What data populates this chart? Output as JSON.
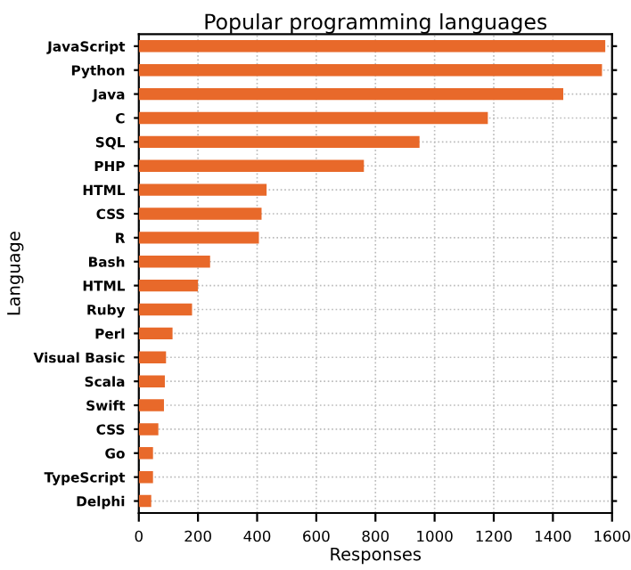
{
  "chart_data": {
    "type": "bar",
    "orientation": "horizontal",
    "title": "Popular programming languages",
    "xlabel": "Responses",
    "ylabel": "Language",
    "categories": [
      "JavaScript",
      "Python",
      "Java",
      "C",
      "SQL",
      "PHP",
      "HTML",
      "CSS",
      "R",
      "Bash",
      "HTML",
      "Ruby",
      "Perl",
      "Visual Basic",
      "Scala",
      "Swift",
      "CSS",
      "Go",
      "TypeScript",
      "Delphi"
    ],
    "values": [
      1577,
      1566,
      1435,
      1180,
      949,
      761,
      432,
      415,
      406,
      241,
      200,
      180,
      114,
      92,
      88,
      85,
      66,
      48,
      48,
      42
    ],
    "color": "#e8692a",
    "xlim": [
      0,
      1600
    ],
    "xticks": [
      0,
      200,
      400,
      600,
      800,
      1000,
      1200,
      1400,
      1600
    ],
    "grid": true
  }
}
